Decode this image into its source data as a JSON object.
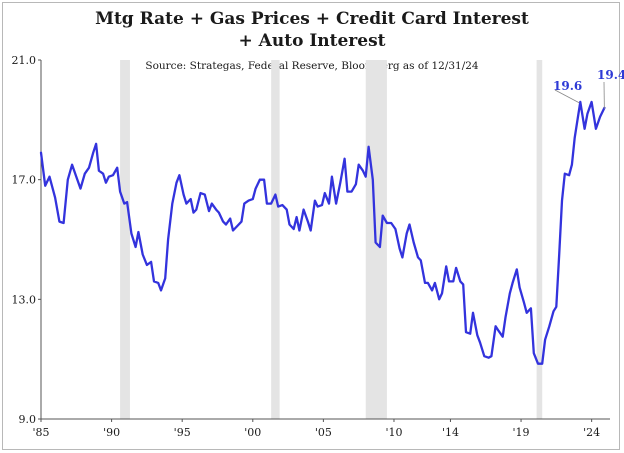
{
  "chart_data": {
    "type": "line",
    "title": "Mtg Rate + Gas Prices + Credit Card Interest",
    "title2": "+ Auto Interest",
    "subtitle": "Source: Strategas, Federal Reserve, Bloomberg as of 12/31/24",
    "xlabel": "",
    "ylabel": "",
    "ylim": [
      9.0,
      21.0
    ],
    "xlim": [
      1985,
      2025.3
    ],
    "yticks": [
      "21.0",
      "17.0",
      "13.0",
      "9.0"
    ],
    "xticks": [
      "'85",
      "'90",
      "'95",
      "'00",
      "'05",
      "'10",
      "'14",
      "'19",
      "'24"
    ],
    "grid": false,
    "legend": "none",
    "line_color": "#3333dd",
    "recession_color": "#e4e4e4",
    "recessions": [
      [
        1990.6,
        1991.3
      ],
      [
        2001.3,
        2001.9
      ],
      [
        2008.0,
        2009.5
      ],
      [
        2020.1,
        2020.5
      ]
    ],
    "annotations": [
      {
        "text": "19.6",
        "x": 2023.2,
        "y": 19.6
      },
      {
        "text": "19.4",
        "x": 2024.9,
        "y": 19.4
      }
    ],
    "series": [
      {
        "values": [
          [
            1985.0,
            17.9
          ],
          [
            1985.3,
            16.8
          ],
          [
            1985.6,
            17.1
          ],
          [
            1986.0,
            16.4
          ],
          [
            1986.3,
            15.6
          ],
          [
            1986.6,
            15.55
          ],
          [
            1986.9,
            17.0
          ],
          [
            1987.2,
            17.5
          ],
          [
            1987.5,
            17.1
          ],
          [
            1987.8,
            16.7
          ],
          [
            1988.1,
            17.2
          ],
          [
            1988.4,
            17.4
          ],
          [
            1988.7,
            17.9
          ],
          [
            1988.9,
            18.2
          ],
          [
            1989.1,
            17.3
          ],
          [
            1989.4,
            17.2
          ],
          [
            1989.6,
            16.9
          ],
          [
            1989.8,
            17.1
          ],
          [
            1990.1,
            17.15
          ],
          [
            1990.4,
            17.4
          ],
          [
            1990.6,
            16.6
          ],
          [
            1990.9,
            16.2
          ],
          [
            1991.1,
            16.25
          ],
          [
            1991.4,
            15.2
          ],
          [
            1991.7,
            14.75
          ],
          [
            1991.9,
            15.25
          ],
          [
            1992.2,
            14.5
          ],
          [
            1992.5,
            14.15
          ],
          [
            1992.8,
            14.25
          ],
          [
            1993.0,
            13.6
          ],
          [
            1993.3,
            13.55
          ],
          [
            1993.5,
            13.3
          ],
          [
            1993.8,
            13.7
          ],
          [
            1994.0,
            15.0
          ],
          [
            1994.3,
            16.2
          ],
          [
            1994.6,
            16.9
          ],
          [
            1994.8,
            17.15
          ],
          [
            1995.1,
            16.5
          ],
          [
            1995.3,
            16.2
          ],
          [
            1995.6,
            16.35
          ],
          [
            1995.8,
            15.9
          ],
          [
            1996.0,
            16.0
          ],
          [
            1996.3,
            16.55
          ],
          [
            1996.6,
            16.5
          ],
          [
            1996.9,
            15.95
          ],
          [
            1997.1,
            16.2
          ],
          [
            1997.4,
            16.0
          ],
          [
            1997.6,
            15.9
          ],
          [
            1997.9,
            15.6
          ],
          [
            1998.1,
            15.5
          ],
          [
            1998.4,
            15.7
          ],
          [
            1998.6,
            15.3
          ],
          [
            1998.9,
            15.45
          ],
          [
            1999.2,
            15.6
          ],
          [
            1999.4,
            16.2
          ],
          [
            1999.7,
            16.3
          ],
          [
            2000.0,
            16.35
          ],
          [
            2000.2,
            16.7
          ],
          [
            2000.5,
            17.0
          ],
          [
            2000.8,
            17.0
          ],
          [
            2001.0,
            16.2
          ],
          [
            2001.3,
            16.2
          ],
          [
            2001.6,
            16.5
          ],
          [
            2001.8,
            16.1
          ],
          [
            2002.1,
            16.15
          ],
          [
            2002.4,
            16.0
          ],
          [
            2002.6,
            15.5
          ],
          [
            2002.9,
            15.35
          ],
          [
            2003.1,
            15.75
          ],
          [
            2003.3,
            15.3
          ],
          [
            2003.6,
            16.0
          ],
          [
            2003.9,
            15.6
          ],
          [
            2004.1,
            15.3
          ],
          [
            2004.4,
            16.3
          ],
          [
            2004.6,
            16.1
          ],
          [
            2004.9,
            16.15
          ],
          [
            2005.1,
            16.55
          ],
          [
            2005.4,
            16.2
          ],
          [
            2005.6,
            17.1
          ],
          [
            2005.9,
            16.2
          ],
          [
            2006.2,
            16.9
          ],
          [
            2006.5,
            17.7
          ],
          [
            2006.7,
            16.6
          ],
          [
            2007.0,
            16.6
          ],
          [
            2007.3,
            16.85
          ],
          [
            2007.5,
            17.5
          ],
          [
            2007.8,
            17.3
          ],
          [
            2008.0,
            17.1
          ],
          [
            2008.2,
            18.1
          ],
          [
            2008.5,
            17.0
          ],
          [
            2008.7,
            14.9
          ],
          [
            2009.0,
            14.75
          ],
          [
            2009.2,
            15.8
          ],
          [
            2009.5,
            15.55
          ],
          [
            2009.8,
            15.55
          ],
          [
            2010.1,
            15.35
          ],
          [
            2010.4,
            14.7
          ],
          [
            2010.6,
            14.4
          ],
          [
            2010.9,
            15.2
          ],
          [
            2011.1,
            15.5
          ],
          [
            2011.4,
            14.9
          ],
          [
            2011.7,
            14.4
          ],
          [
            2011.9,
            14.3
          ],
          [
            2012.2,
            13.55
          ],
          [
            2012.4,
            13.55
          ],
          [
            2012.7,
            13.3
          ],
          [
            2012.9,
            13.55
          ],
          [
            2013.2,
            13.0
          ],
          [
            2013.4,
            13.2
          ],
          [
            2013.7,
            14.1
          ],
          [
            2013.9,
            13.6
          ],
          [
            2014.2,
            13.6
          ],
          [
            2014.4,
            14.05
          ],
          [
            2014.7,
            13.6
          ],
          [
            2014.9,
            13.5
          ],
          [
            2015.1,
            11.9
          ],
          [
            2015.4,
            11.85
          ],
          [
            2015.6,
            12.55
          ],
          [
            2015.9,
            11.8
          ],
          [
            2016.1,
            11.55
          ],
          [
            2016.4,
            11.1
          ],
          [
            2016.7,
            11.05
          ],
          [
            2016.9,
            11.1
          ],
          [
            2017.2,
            12.1
          ],
          [
            2017.4,
            11.95
          ],
          [
            2017.7,
            11.75
          ],
          [
            2017.9,
            12.4
          ],
          [
            2018.2,
            13.2
          ],
          [
            2018.4,
            13.55
          ],
          [
            2018.7,
            14.0
          ],
          [
            2018.9,
            13.4
          ],
          [
            2019.2,
            12.9
          ],
          [
            2019.4,
            12.55
          ],
          [
            2019.7,
            12.7
          ],
          [
            2019.9,
            11.2
          ],
          [
            2020.2,
            10.85
          ],
          [
            2020.5,
            10.85
          ],
          [
            2020.7,
            11.65
          ],
          [
            2021.0,
            12.1
          ],
          [
            2021.3,
            12.6
          ],
          [
            2021.5,
            12.75
          ],
          [
            2021.7,
            14.5
          ],
          [
            2021.9,
            16.3
          ],
          [
            2022.1,
            17.2
          ],
          [
            2022.4,
            17.15
          ],
          [
            2022.6,
            17.5
          ],
          [
            2022.8,
            18.4
          ],
          [
            2023.0,
            19.0
          ],
          [
            2023.2,
            19.6
          ],
          [
            2023.5,
            18.7
          ],
          [
            2023.7,
            19.2
          ],
          [
            2024.0,
            19.6
          ],
          [
            2024.3,
            18.7
          ],
          [
            2024.6,
            19.1
          ],
          [
            2024.9,
            19.4
          ]
        ]
      }
    ]
  }
}
